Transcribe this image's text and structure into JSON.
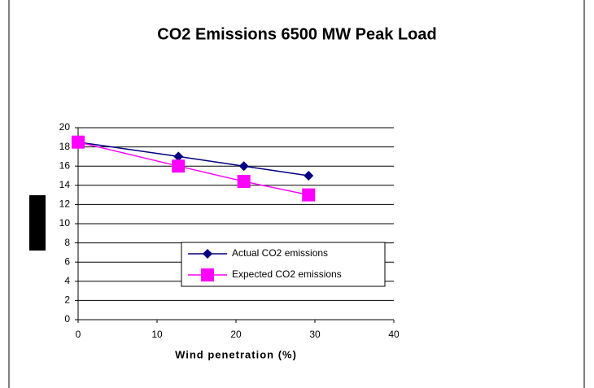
{
  "chart_data": {
    "type": "line",
    "title": "CO2 Emissions 6500 MW Peak Load",
    "x_label": "Wind penetration (%)",
    "series": [
      {
        "name": "Actual CO2 emissions",
        "color": "#000080",
        "marker": "diamond",
        "x": [
          0,
          12.7,
          21,
          29.2
        ],
        "values": [
          18.5,
          17,
          16,
          15
        ]
      },
      {
        "name": "Expected CO2 emissions",
        "color": "#ff00ff",
        "marker": "square",
        "x": [
          0,
          12.7,
          21,
          29.2
        ],
        "values": [
          18.5,
          16,
          14.4,
          13
        ]
      }
    ],
    "xlim": [
      0,
      40
    ],
    "xticks": [
      0,
      10,
      20,
      30,
      40
    ],
    "ylim": [
      0,
      20
    ],
    "yticks": [
      0,
      2,
      4,
      6,
      8,
      10,
      12,
      14,
      16,
      18,
      20
    ],
    "grid": true,
    "legend": "lower center"
  }
}
